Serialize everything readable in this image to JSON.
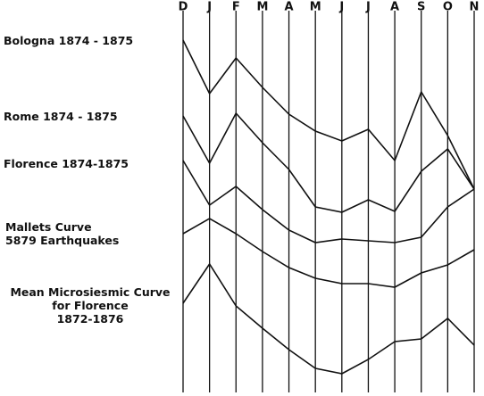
{
  "chart_data": {
    "type": "line",
    "categories": [
      "D",
      "J",
      "F",
      "M",
      "A",
      "M",
      "J",
      "J",
      "A",
      "S",
      "O",
      "N"
    ],
    "ylim": [
      0,
      444
    ],
    "color": "#111111",
    "series": [
      {
        "name": "Bologna 1874 - 1875",
        "values": [
          399,
          339,
          379,
          346,
          316,
          297,
          286,
          299,
          264,
          341,
          292,
          232
        ]
      },
      {
        "name": "Rome  1874 - 1875",
        "values": [
          314,
          261,
          317,
          284,
          254,
          212,
          206,
          220,
          207,
          252,
          277,
          232
        ]
      },
      {
        "name": "Florence 1874-1875",
        "values": [
          264,
          214,
          235,
          209,
          186,
          172,
          176,
          174,
          172,
          178,
          212,
          232
        ]
      },
      {
        "name": "Mallets Curve\n5879 Earthquakes",
        "values": [
          182,
          199,
          182,
          162,
          144,
          132,
          126,
          126,
          122,
          138,
          147,
          164
        ]
      },
      {
        "name": "Mean Microsiesmic Curve\nfor Florence\n1872-1876",
        "values": [
          104,
          148,
          101,
          76,
          52,
          31,
          25,
          41,
          61,
          64,
          87,
          57
        ]
      }
    ]
  }
}
